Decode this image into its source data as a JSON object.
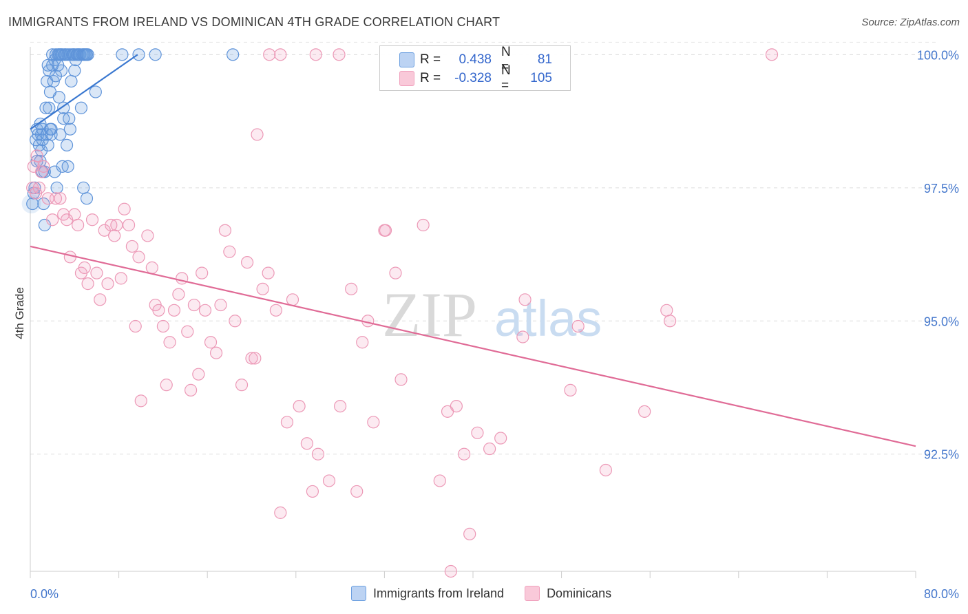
{
  "title": "IMMIGRANTS FROM IRELAND VS DOMINICAN 4TH GRADE CORRELATION CHART",
  "source": "Source: ZipAtlas.com",
  "watermark": {
    "zip": "ZIP",
    "atlas": "atlas"
  },
  "stats": [
    {
      "r_label": "R =",
      "r_value": "0.438",
      "n_label": "N =",
      "n_value": "81"
    },
    {
      "r_label": "R =",
      "r_value": "-0.328",
      "n_label": "N =",
      "n_value": "105"
    }
  ],
  "legend": [
    {
      "label": "Immigrants from Ireland"
    },
    {
      "label": "Dominicans"
    }
  ],
  "chart_data": {
    "type": "scatter",
    "title": "IMMIGRANTS FROM IRELAND VS DOMINICAN 4TH GRADE CORRELATION CHART",
    "xlabel": "",
    "ylabel": "4th Grade",
    "xlim": [
      0,
      80
    ],
    "ylim": [
      90.3,
      100.25
    ],
    "x_tick_labels": [
      "0.0%",
      "80.0%"
    ],
    "y_ticks": [
      100.0,
      97.5,
      95.0,
      92.5
    ],
    "y_tick_labels": [
      "100.0%",
      "97.5%",
      "95.0%",
      "92.5%"
    ],
    "grid": true,
    "colors": {
      "ireland": "#6b9fe0",
      "ireland_line": "#3a78d0",
      "dominican": "#f0a0bd",
      "dominican_line": "#e06b96"
    },
    "series": [
      {
        "name": "Immigrants from Ireland",
        "trendline": {
          "x": [
            0.0,
            9.7
          ],
          "y": [
            98.6,
            100.0
          ]
        },
        "points": [
          [
            0.2,
            97.2
          ],
          [
            0.3,
            97.4
          ],
          [
            0.4,
            97.5
          ],
          [
            0.5,
            98.4
          ],
          [
            0.6,
            98.0
          ],
          [
            0.6,
            98.6
          ],
          [
            0.7,
            98.5
          ],
          [
            0.8,
            98.3
          ],
          [
            0.9,
            98.0
          ],
          [
            1.0,
            98.5
          ],
          [
            1.0,
            98.2
          ],
          [
            1.1,
            97.8
          ],
          [
            1.1,
            98.6
          ],
          [
            1.2,
            97.2
          ],
          [
            1.3,
            96.8
          ],
          [
            1.3,
            97.8
          ],
          [
            1.4,
            99.0
          ],
          [
            1.5,
            98.5
          ],
          [
            1.5,
            99.5
          ],
          [
            1.6,
            98.3
          ],
          [
            1.7,
            99.7
          ],
          [
            1.7,
            99.0
          ],
          [
            1.8,
            98.6
          ],
          [
            1.8,
            99.3
          ],
          [
            1.9,
            98.6
          ],
          [
            2.0,
            99.8
          ],
          [
            2.0,
            100.0
          ],
          [
            2.1,
            99.5
          ],
          [
            2.2,
            99.9
          ],
          [
            2.2,
            97.8
          ],
          [
            2.3,
            100.0
          ],
          [
            2.3,
            99.6
          ],
          [
            2.4,
            97.5
          ],
          [
            2.5,
            99.8
          ],
          [
            2.6,
            100.0
          ],
          [
            2.6,
            99.2
          ],
          [
            2.7,
            100.0
          ],
          [
            2.7,
            98.5
          ],
          [
            2.8,
            100.0
          ],
          [
            2.8,
            99.7
          ],
          [
            2.9,
            97.9
          ],
          [
            2.9,
            100.0
          ],
          [
            3.0,
            98.8
          ],
          [
            3.0,
            99.0
          ],
          [
            3.1,
            100.0
          ],
          [
            3.2,
            100.0
          ],
          [
            3.3,
            98.3
          ],
          [
            3.4,
            100.0
          ],
          [
            3.5,
            98.8
          ],
          [
            3.6,
            100.0
          ],
          [
            3.6,
            98.6
          ],
          [
            3.7,
            99.5
          ],
          [
            3.8,
            100.0
          ],
          [
            3.9,
            100.0
          ],
          [
            4.0,
            100.0
          ],
          [
            4.1,
            99.9
          ],
          [
            4.2,
            100.0
          ],
          [
            4.3,
            100.0
          ],
          [
            4.4,
            100.0
          ],
          [
            4.5,
            100.0
          ],
          [
            4.6,
            99.0
          ],
          [
            4.7,
            100.0
          ],
          [
            4.8,
            100.0
          ],
          [
            4.9,
            100.0
          ],
          [
            5.0,
            100.0
          ],
          [
            5.1,
            100.0
          ],
          [
            5.2,
            100.0
          ],
          [
            5.1,
            97.3
          ],
          [
            4.8,
            97.5
          ],
          [
            5.9,
            99.3
          ],
          [
            8.3,
            100.0
          ],
          [
            9.8,
            100.0
          ],
          [
            11.3,
            100.0
          ],
          [
            18.3,
            100.0
          ],
          [
            1.1,
            98.4
          ],
          [
            1.9,
            98.5
          ],
          [
            2.5,
            100.0
          ],
          [
            3.4,
            97.9
          ],
          [
            4.0,
            99.7
          ],
          [
            0.9,
            98.7
          ],
          [
            1.6,
            99.8
          ]
        ]
      },
      {
        "name": "Dominicans",
        "trendline": {
          "x": [
            0.0,
            80.0
          ],
          "y": [
            96.4,
            92.65
          ]
        },
        "points": [
          [
            0.2,
            97.5
          ],
          [
            0.3,
            97.9
          ],
          [
            0.5,
            97.4
          ],
          [
            0.6,
            98.1
          ],
          [
            0.8,
            97.5
          ],
          [
            1.0,
            97.8
          ],
          [
            1.2,
            97.9
          ],
          [
            1.6,
            97.3
          ],
          [
            2.0,
            96.9
          ],
          [
            2.3,
            97.3
          ],
          [
            2.7,
            97.3
          ],
          [
            3.0,
            97.0
          ],
          [
            3.3,
            96.9
          ],
          [
            3.6,
            96.2
          ],
          [
            4.0,
            97.0
          ],
          [
            4.3,
            96.8
          ],
          [
            4.6,
            95.9
          ],
          [
            4.9,
            96.0
          ],
          [
            5.2,
            95.7
          ],
          [
            5.6,
            96.9
          ],
          [
            6.0,
            95.9
          ],
          [
            6.3,
            95.4
          ],
          [
            6.7,
            96.7
          ],
          [
            7.0,
            95.7
          ],
          [
            7.3,
            96.8
          ],
          [
            7.6,
            96.6
          ],
          [
            7.8,
            96.8
          ],
          [
            8.2,
            95.8
          ],
          [
            8.5,
            97.1
          ],
          [
            8.9,
            96.8
          ],
          [
            9.2,
            96.4
          ],
          [
            9.5,
            94.9
          ],
          [
            9.8,
            96.2
          ],
          [
            10.0,
            93.5
          ],
          [
            10.6,
            96.6
          ],
          [
            11.0,
            96.0
          ],
          [
            11.3,
            95.3
          ],
          [
            11.6,
            95.2
          ],
          [
            12.0,
            94.9
          ],
          [
            12.3,
            93.8
          ],
          [
            12.6,
            94.6
          ],
          [
            13.0,
            95.2
          ],
          [
            13.4,
            95.5
          ],
          [
            13.7,
            95.8
          ],
          [
            14.2,
            94.8
          ],
          [
            14.5,
            93.7
          ],
          [
            14.8,
            95.3
          ],
          [
            15.2,
            94.0
          ],
          [
            15.5,
            95.9
          ],
          [
            15.8,
            95.2
          ],
          [
            16.3,
            94.6
          ],
          [
            16.8,
            94.4
          ],
          [
            17.2,
            95.3
          ],
          [
            17.6,
            96.7
          ],
          [
            18.0,
            96.3
          ],
          [
            18.5,
            95.0
          ],
          [
            19.1,
            93.8
          ],
          [
            19.6,
            96.1
          ],
          [
            20.0,
            94.3
          ],
          [
            20.3,
            94.3
          ],
          [
            21.0,
            95.6
          ],
          [
            21.5,
            95.9
          ],
          [
            22.2,
            95.2
          ],
          [
            22.6,
            91.4
          ],
          [
            23.2,
            93.1
          ],
          [
            23.7,
            95.4
          ],
          [
            24.3,
            93.4
          ],
          [
            25.0,
            92.7
          ],
          [
            25.5,
            91.8
          ],
          [
            26.0,
            92.5
          ],
          [
            27.0,
            92.0
          ],
          [
            28.0,
            93.4
          ],
          [
            29.0,
            95.6
          ],
          [
            29.5,
            91.8
          ],
          [
            30.0,
            94.6
          ],
          [
            30.5,
            95.0
          ],
          [
            31.0,
            93.1
          ],
          [
            32.0,
            96.7
          ],
          [
            33.0,
            95.9
          ],
          [
            33.5,
            93.9
          ],
          [
            35.5,
            96.8
          ],
          [
            37.0,
            92.0
          ],
          [
            37.7,
            93.3
          ],
          [
            38.5,
            93.4
          ],
          [
            39.2,
            92.5
          ],
          [
            39.7,
            91.0
          ],
          [
            40.4,
            92.9
          ],
          [
            41.5,
            92.6
          ],
          [
            42.5,
            92.8
          ],
          [
            44.7,
            95.4
          ],
          [
            44.5,
            94.7
          ],
          [
            48.8,
            93.7
          ],
          [
            49.5,
            94.9
          ],
          [
            52.0,
            92.2
          ],
          [
            55.5,
            93.3
          ],
          [
            57.5,
            95.2
          ],
          [
            57.8,
            95.0
          ],
          [
            20.5,
            98.5
          ],
          [
            21.6,
            100.0
          ],
          [
            22.6,
            100.0
          ],
          [
            25.8,
            100.0
          ],
          [
            27.9,
            100.0
          ],
          [
            67.0,
            100.0
          ],
          [
            38.0,
            90.3
          ],
          [
            32.1,
            96.7
          ]
        ]
      }
    ]
  }
}
